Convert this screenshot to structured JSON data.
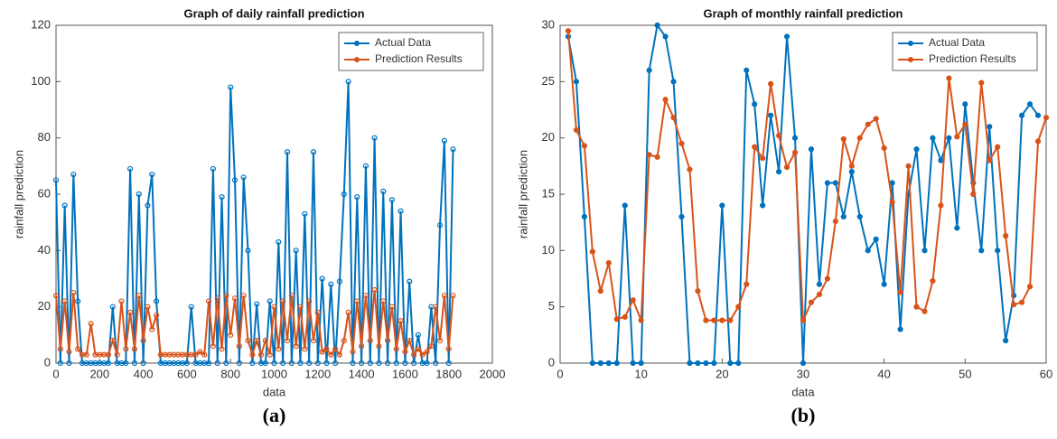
{
  "chart_data": [
    {
      "type": "line",
      "title": "Graph of daily rainfall prediction",
      "xlabel": "data",
      "ylabel": "rainfall prediction",
      "caption": "(a)",
      "x": [
        0,
        20,
        40,
        60,
        80,
        100,
        120,
        140,
        160,
        180,
        200,
        220,
        240,
        260,
        280,
        300,
        320,
        340,
        360,
        380,
        400,
        420,
        440,
        460,
        480,
        500,
        520,
        540,
        560,
        580,
        600,
        620,
        640,
        660,
        680,
        700,
        720,
        740,
        760,
        780,
        800,
        820,
        840,
        860,
        880,
        900,
        920,
        940,
        960,
        980,
        1000,
        1020,
        1040,
        1060,
        1080,
        1100,
        1120,
        1140,
        1160,
        1180,
        1200,
        1220,
        1240,
        1260,
        1280,
        1300,
        1320,
        1340,
        1360,
        1380,
        1400,
        1420,
        1440,
        1460,
        1480,
        1500,
        1520,
        1540,
        1560,
        1580,
        1600,
        1620,
        1640,
        1660,
        1680,
        1700,
        1720,
        1740,
        1760,
        1780,
        1800,
        1820
      ],
      "series": [
        {
          "name": "Actual Data",
          "color": "#0072bd",
          "values": [
            65,
            0,
            56,
            0,
            67,
            22,
            0,
            0,
            0,
            0,
            0,
            0,
            0,
            20,
            0,
            0,
            0,
            69,
            0,
            60,
            0,
            56,
            67,
            22,
            0,
            0,
            0,
            0,
            0,
            0,
            0,
            20,
            0,
            0,
            0,
            0,
            69,
            0,
            59,
            0,
            98,
            65,
            0,
            66,
            40,
            0,
            21,
            0,
            0,
            22,
            0,
            43,
            0,
            75,
            0,
            40,
            0,
            53,
            0,
            75,
            0,
            30,
            0,
            28,
            0,
            29,
            60,
            100,
            0,
            59,
            0,
            70,
            0,
            80,
            0,
            61,
            0,
            58,
            0,
            54,
            0,
            29,
            0,
            10,
            0,
            0,
            20,
            0,
            49,
            79,
            0,
            76
          ]
        },
        {
          "name": "Prediction Results",
          "color": "#d95319",
          "values": [
            24,
            5,
            22,
            4,
            25,
            5,
            3,
            3,
            14,
            3,
            3,
            3,
            3,
            8,
            3,
            22,
            5,
            18,
            5,
            24,
            8,
            20,
            12,
            17,
            3,
            3,
            3,
            3,
            3,
            3,
            3,
            3,
            3,
            4,
            3,
            22,
            6,
            23,
            5,
            24,
            10,
            23,
            6,
            24,
            8,
            3,
            8,
            3,
            8,
            3,
            20,
            5,
            22,
            8,
            24,
            6,
            20,
            5,
            22,
            8,
            18,
            4,
            5,
            3,
            5,
            3,
            8,
            18,
            4,
            22,
            6,
            24,
            8,
            26,
            6,
            22,
            8,
            20,
            5,
            15,
            4,
            8,
            3,
            5,
            3,
            4,
            6,
            20,
            8,
            24,
            5,
            24
          ]
        }
      ],
      "xlim": [
        0,
        2000
      ],
      "xticks": [
        0,
        200,
        400,
        600,
        800,
        1000,
        1200,
        1400,
        1600,
        1800,
        2000
      ],
      "ylim": [
        0,
        120
      ],
      "yticks": [
        0,
        20,
        40,
        60,
        80,
        100,
        120
      ],
      "legend": "top-right"
    },
    {
      "type": "line",
      "title": "Graph of monthly rainfall prediction",
      "xlabel": "data",
      "ylabel": "rainfall prediction",
      "caption": "(b)",
      "x": [
        1,
        2,
        3,
        4,
        5,
        6,
        7,
        8,
        9,
        10,
        11,
        12,
        13,
        14,
        15,
        16,
        17,
        18,
        19,
        20,
        21,
        22,
        23,
        24,
        25,
        26,
        27,
        28,
        29,
        30,
        31,
        32,
        33,
        34,
        35,
        36,
        37,
        38,
        39,
        40,
        41,
        42,
        43,
        44,
        45,
        46,
        47,
        48,
        49,
        50,
        51,
        52,
        53,
        54,
        55,
        56,
        57,
        58,
        59,
        60
      ],
      "series": [
        {
          "name": "Actual Data",
          "color": "#0072bd",
          "values": [
            29,
            25,
            13,
            0,
            0,
            0,
            0,
            14,
            0,
            0,
            26,
            30,
            29,
            25,
            13,
            0,
            0,
            0,
            0,
            14,
            0,
            0,
            26,
            23,
            14,
            22,
            17,
            29,
            20,
            0,
            19,
            7,
            16,
            16,
            13,
            17,
            13,
            10,
            11,
            7,
            16,
            3,
            15,
            19,
            10,
            20,
            18,
            20,
            12,
            23,
            16,
            10,
            21,
            10,
            2,
            6,
            22,
            23,
            22,
            null
          ]
        },
        {
          "name": "Prediction Results",
          "color": "#d95319",
          "values": [
            29.5,
            20.7,
            19.3,
            9.9,
            6.4,
            8.9,
            3.9,
            4.1,
            5.6,
            3.8,
            18.5,
            18.3,
            23.4,
            21.8,
            19.5,
            17.2,
            6.4,
            3.8,
            3.8,
            3.8,
            3.8,
            5.0,
            7.0,
            19.2,
            18.2,
            24.8,
            20.2,
            17.4,
            18.7,
            3.8,
            5.4,
            6.1,
            7.5,
            12.6,
            19.9,
            17.5,
            20.0,
            21.2,
            21.7,
            19.1,
            14.3,
            6.3,
            17.5,
            5.0,
            4.6,
            7.3,
            14.0,
            25.3,
            20.1,
            21.2,
            15.0,
            24.9,
            18.0,
            19.2,
            11.3,
            5.2,
            5.4,
            6.8,
            19.7,
            21.8
          ]
        }
      ],
      "xlim": [
        0,
        60
      ],
      "xticks": [
        0,
        10,
        20,
        30,
        40,
        50,
        60
      ],
      "ylim": [
        0,
        30
      ],
      "yticks": [
        0,
        5,
        10,
        15,
        20,
        25,
        30
      ],
      "legend": "top-right"
    }
  ]
}
